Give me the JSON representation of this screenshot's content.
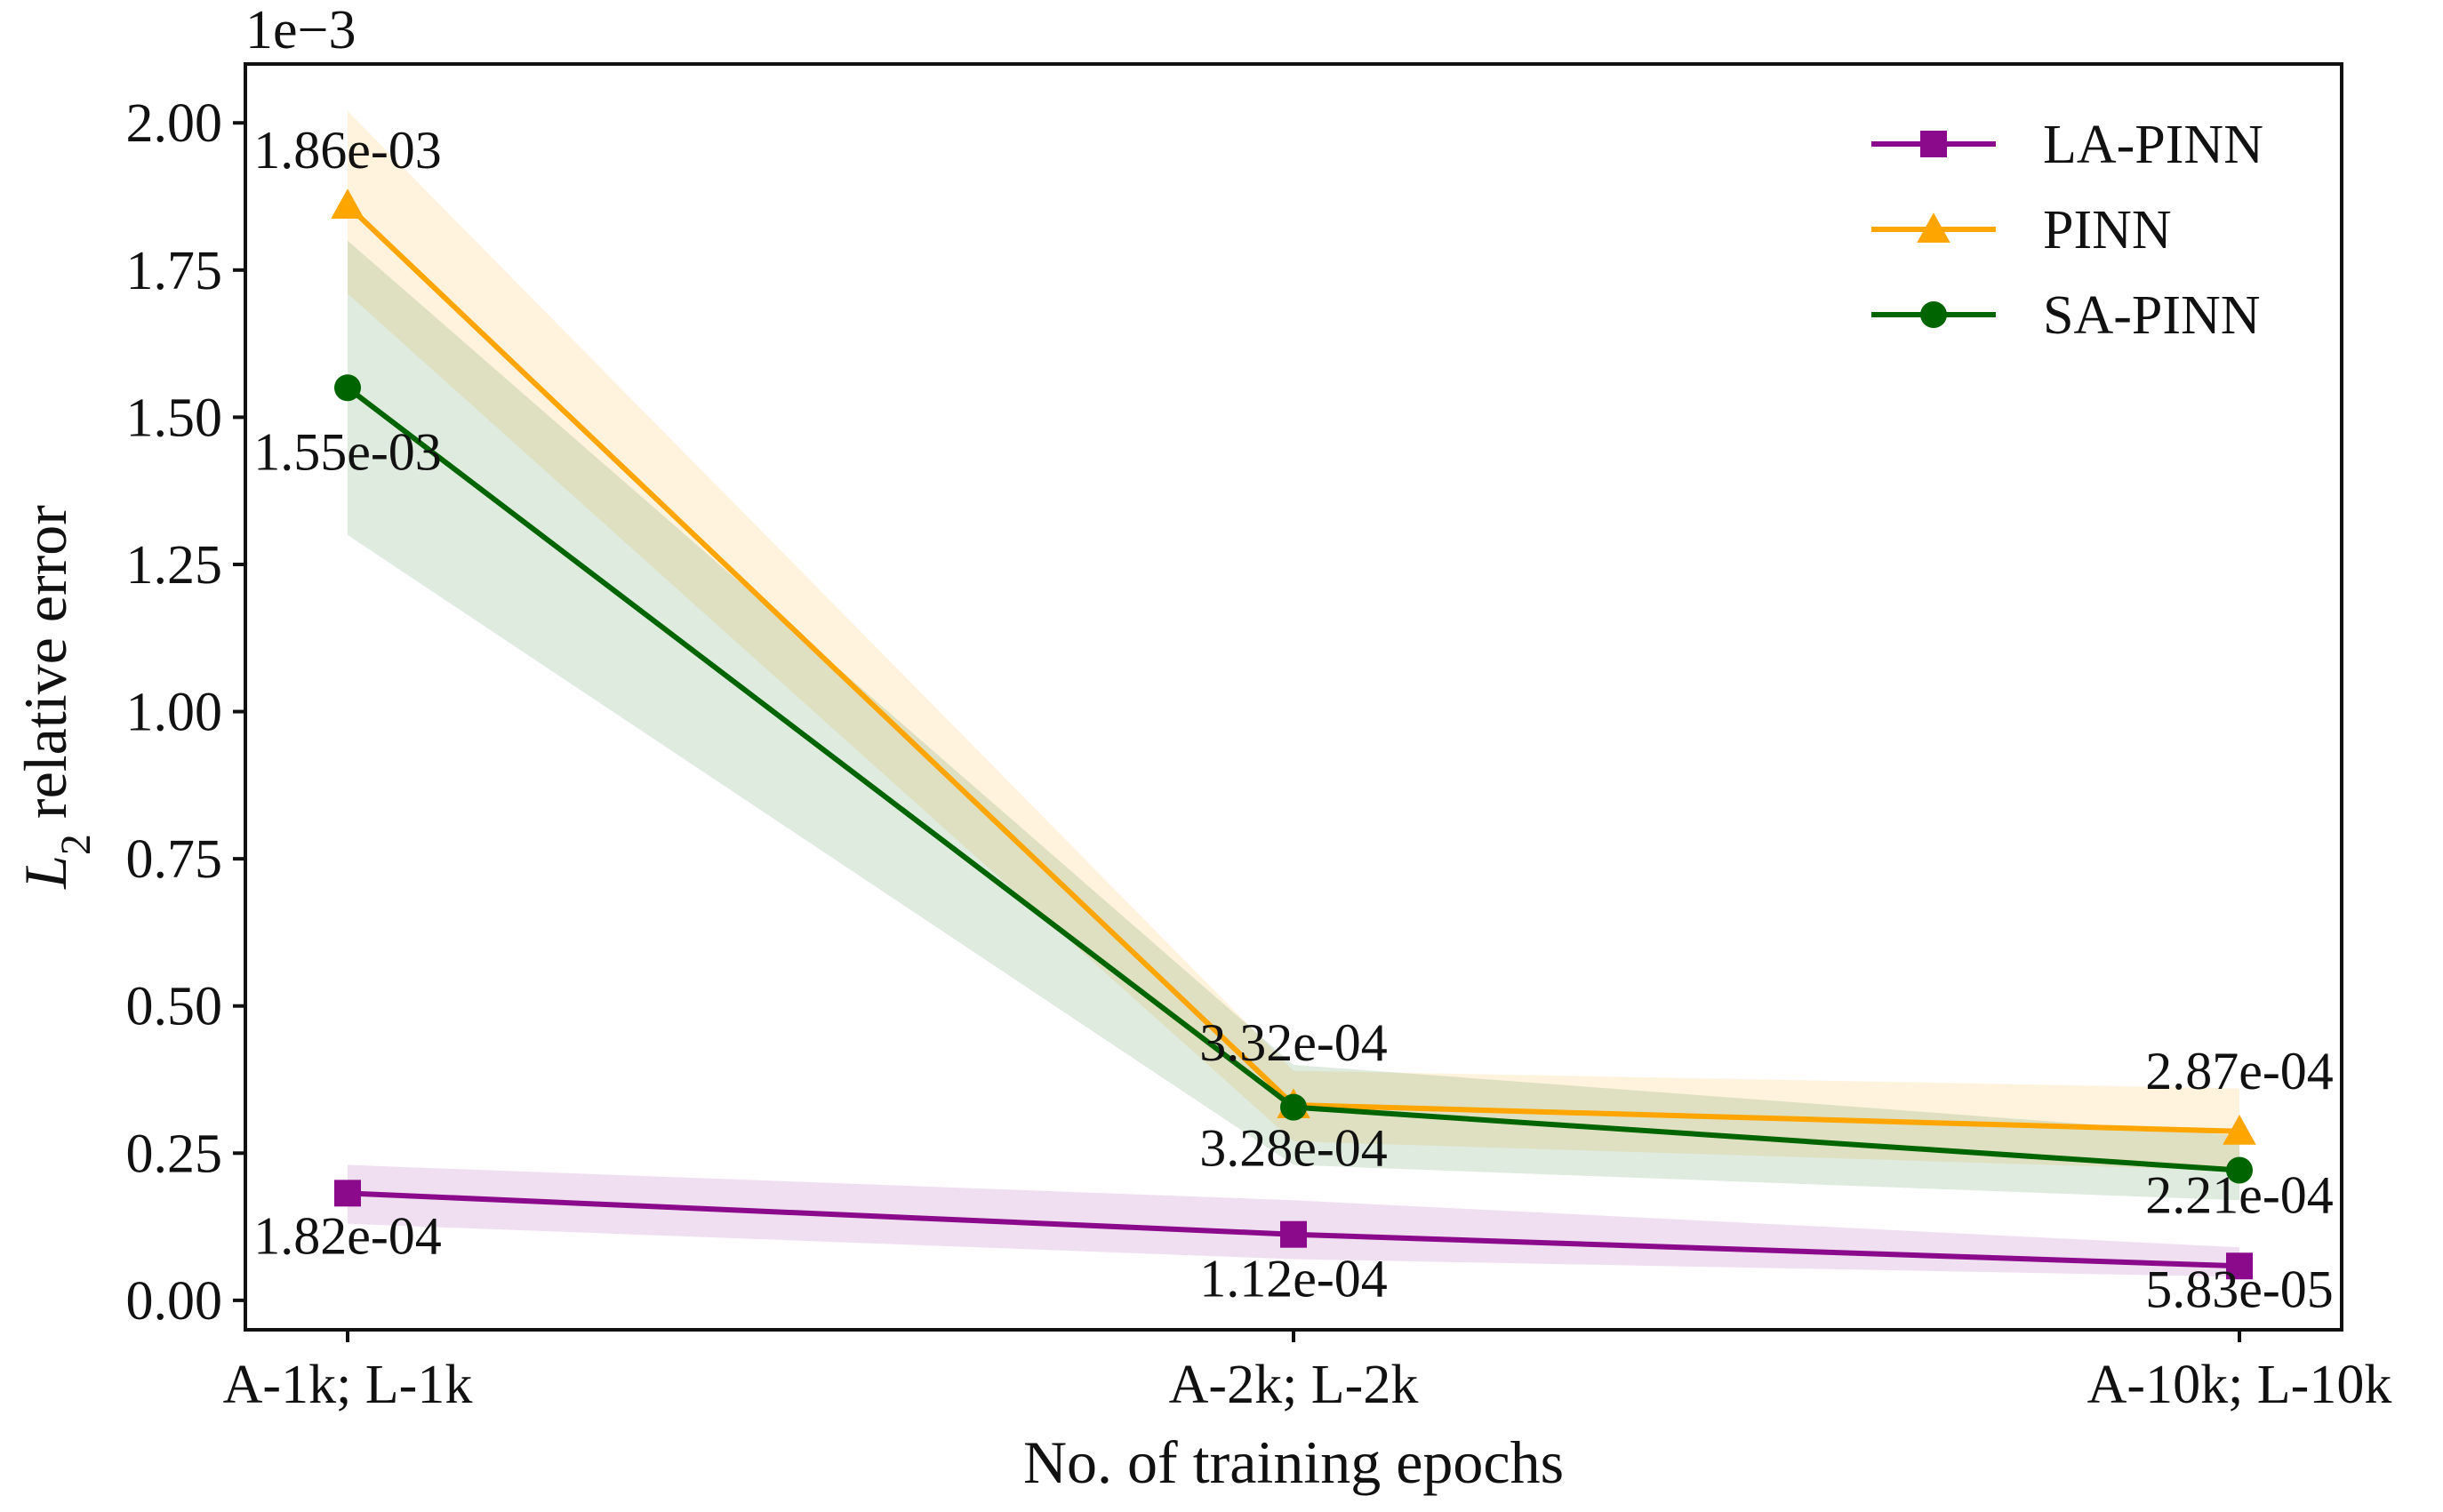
{
  "chart_data": {
    "type": "line",
    "categories": [
      "A-1k; L-1k",
      "A-2k; L-2k",
      "A-10k; L-10k"
    ],
    "xlabel": "No. of training epochs",
    "ylabel_main": "L",
    "ylabel_sub": "2",
    "ylabel_rest": " relative error",
    "y_exponent_label": "1e−3",
    "ylim": [
      -0.05,
      2.1
    ],
    "yticks": [
      0.0,
      0.25,
      0.5,
      0.75,
      1.0,
      1.25,
      1.5,
      1.75,
      2.0
    ],
    "ytick_labels": [
      "0.00",
      "0.25",
      "0.50",
      "0.75",
      "1.00",
      "1.25",
      "1.50",
      "1.75",
      "2.00"
    ],
    "legend_position": "top-right",
    "series": [
      {
        "name": "LA-PINN",
        "color": "#8b0a8b",
        "marker": "square",
        "values": [
          0.182,
          0.112,
          0.0583
        ],
        "band_lower": [
          0.13,
          0.07,
          0.04
        ],
        "band_upper": [
          0.23,
          0.17,
          0.09
        ],
        "point_labels": [
          "1.82e-04",
          "1.12e-04",
          "5.83e-05"
        ]
      },
      {
        "name": "PINN",
        "color": "#ffa500",
        "marker": "triangle",
        "values": [
          1.86,
          0.332,
          0.287
        ],
        "band_lower": [
          1.71,
          0.27,
          0.22
        ],
        "band_upper": [
          2.02,
          0.39,
          0.36
        ],
        "point_labels": [
          "1.86e-03",
          "3.32e-04",
          "2.87e-04"
        ]
      },
      {
        "name": "SA-PINN",
        "color": "#006400",
        "marker": "circle",
        "values": [
          1.55,
          0.328,
          0.221
        ],
        "band_lower": [
          1.3,
          0.23,
          0.17
        ],
        "band_upper": [
          1.8,
          0.4,
          0.28
        ],
        "point_labels": [
          "1.55e-03",
          "3.28e-04",
          "2.21e-04"
        ]
      }
    ]
  }
}
